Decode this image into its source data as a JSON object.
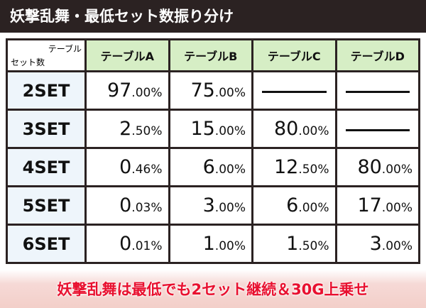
{
  "header": {
    "title": "妖撃乱舞・最低セット数振り分け"
  },
  "table": {
    "corner_top": "テーブル",
    "corner_bottom": "セット数",
    "columns": [
      "テーブルA",
      "テーブルB",
      "テーブルC",
      "テーブルD"
    ],
    "rows": [
      [
        "2SET",
        "97.00%",
        "75.00%",
        null,
        null
      ],
      [
        "3SET",
        "2.50%",
        "15.00%",
        "80.00%",
        null
      ],
      [
        "4SET",
        "0.46%",
        "6.00%",
        "12.50%",
        "80.00%"
      ],
      [
        "5SET",
        "0.03%",
        "3.00%",
        "6.00%",
        "17.00%"
      ],
      [
        "6SET",
        "0.01%",
        "1.00%",
        "1.50%",
        "3.00%"
      ]
    ]
  },
  "footer": {
    "note": "妖撃乱舞は最低でも2セット継続＆30G上乗せ"
  }
}
